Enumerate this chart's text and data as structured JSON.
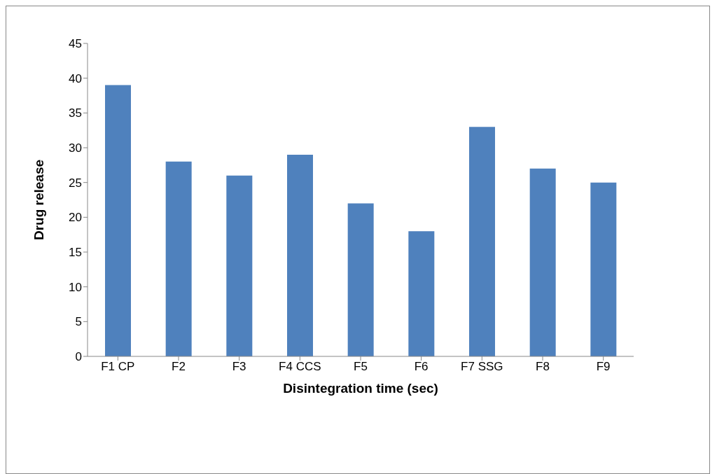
{
  "chart_data": {
    "type": "bar",
    "xlabel": "Disintegration time (sec)",
    "ylabel": "Drug release",
    "categories": [
      "F1 CP",
      "F2",
      "F3",
      "F4 CCS",
      "F5",
      "F6",
      "F7 SSG",
      "F8",
      "F9"
    ],
    "values": [
      39,
      28,
      26,
      29,
      22,
      18,
      33,
      27,
      25
    ],
    "color": "#4f81bd",
    "ylim": [
      0,
      45
    ],
    "yticks": [
      0,
      5,
      10,
      15,
      20,
      25,
      30,
      35,
      40,
      45
    ]
  }
}
